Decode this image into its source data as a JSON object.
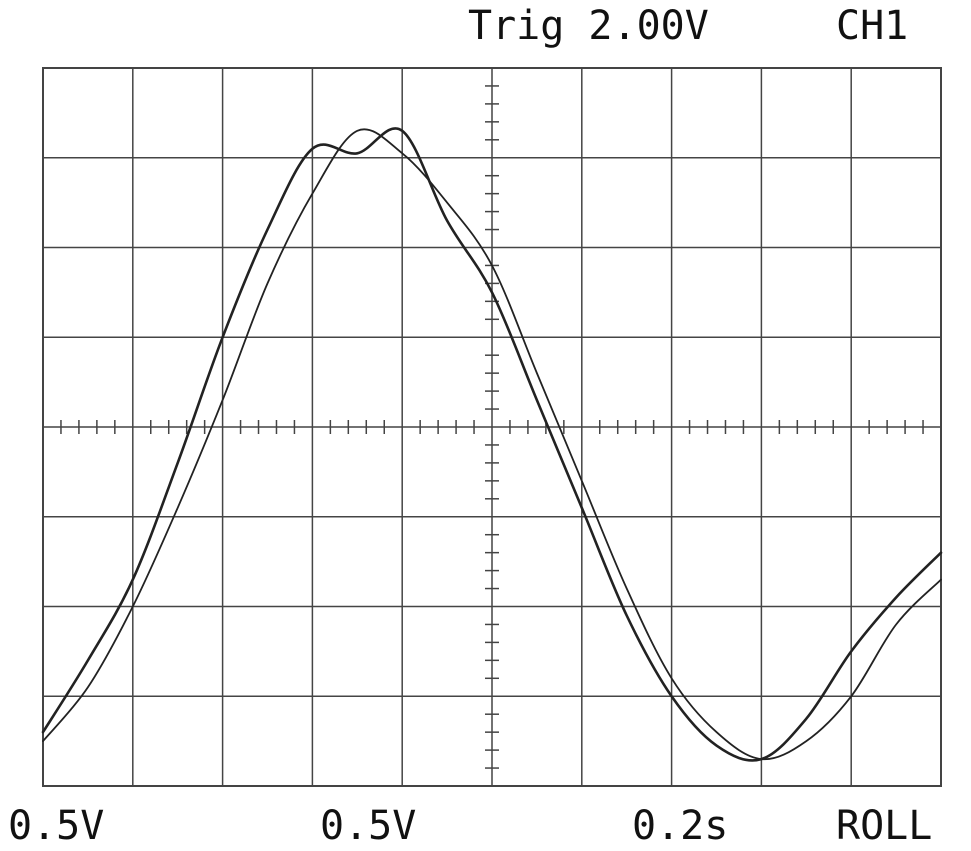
{
  "header": {
    "trigger": "Trig 2.00V",
    "channel": "CH1"
  },
  "footer": {
    "ch1_scale": "0.5V",
    "ch2_scale": "0.5V",
    "timebase": "0.2s",
    "mode": "ROLL"
  },
  "chart_data": {
    "type": "line",
    "title": "",
    "xlabel": "",
    "ylabel": "",
    "xlim": [
      0,
      10
    ],
    "ylim": [
      -4,
      4
    ],
    "grid": true,
    "x_divisions": 10,
    "y_divisions": 8,
    "colors": {
      "trace": "#222222",
      "grid": "#444444",
      "background": "#ffffff"
    },
    "series": [
      {
        "x": [
          0,
          0.5,
          1,
          1.5,
          2,
          2.5,
          3,
          3.5,
          4,
          4.5,
          5,
          5.5,
          6,
          6.5,
          7,
          7.5,
          8,
          8.5,
          9,
          9.5,
          10
        ],
        "y": [
          -3.5,
          -2.9,
          -2.0,
          -0.9,
          0.3,
          1.6,
          2.6,
          3.3,
          3.05,
          2.5,
          1.8,
          0.6,
          -0.6,
          -1.8,
          -2.8,
          -3.4,
          -3.7,
          -3.5,
          -3.0,
          -2.2,
          -1.7
        ]
      },
      {
        "x": [
          0,
          0.5,
          1,
          1.5,
          2,
          2.5,
          3,
          3.5,
          4,
          4.5,
          5,
          5.5,
          6,
          6.5,
          7,
          7.5,
          8,
          8.5,
          9,
          9.5,
          10
        ],
        "y": [
          -3.4,
          -2.6,
          -1.7,
          -0.4,
          1.0,
          2.2,
          3.1,
          3.05,
          3.3,
          2.3,
          1.5,
          0.3,
          -0.9,
          -2.1,
          -3.0,
          -3.55,
          -3.7,
          -3.25,
          -2.5,
          -1.9,
          -1.4
        ]
      }
    ]
  }
}
